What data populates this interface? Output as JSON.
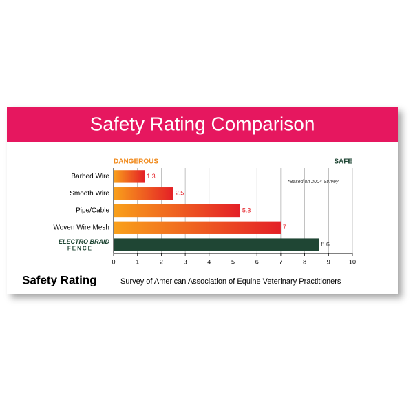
{
  "chart_data": {
    "type": "hbar",
    "title": "Safety Rating Comparison",
    "left_label": "DANGEROUS",
    "right_label": "SAFE",
    "note": "*Based on 2004 Survey",
    "categories": [
      "Barbed Wire",
      "Smooth Wire",
      "Pipe/Cable",
      "Woven Wire Mesh",
      null
    ],
    "logo": {
      "line1": "ELECTRO BRAID",
      "line2": "FENCE"
    },
    "values": [
      1.3,
      2.5,
      5.3,
      7,
      8.6
    ],
    "gradient": [
      "#f9a11b",
      "#e41f26"
    ],
    "highlight_color": "#1f4634",
    "xlim": [
      0,
      10
    ],
    "xticks": [
      0,
      1,
      2,
      3,
      4,
      5,
      6,
      7,
      8,
      9,
      10
    ],
    "grid": true,
    "footer_title": "Safety Rating",
    "footer_text": "Survey of American Association of Equine Veterinary Practitioners"
  }
}
